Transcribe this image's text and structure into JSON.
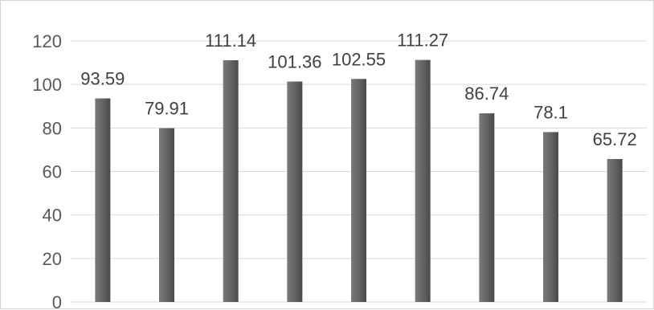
{
  "chart_data": {
    "type": "bar",
    "categories": [
      "",
      "",
      "",
      "",
      "",
      "",
      "",
      "",
      ""
    ],
    "values": [
      93.59,
      79.91,
      111.14,
      101.36,
      102.55,
      111.27,
      86.74,
      78.1,
      65.72
    ],
    "data_labels": [
      "93.59",
      "79.91",
      "111.14",
      "101.36",
      "102.55",
      "111.27",
      "86.74",
      "78.1",
      "65.72"
    ],
    "title": "",
    "xlabel": "",
    "ylabel": "",
    "ylim": [
      0,
      120
    ],
    "yticks": [
      0,
      20,
      40,
      60,
      80,
      100,
      120
    ],
    "grid": true,
    "legend": "none",
    "bar_color": "#646464",
    "bar_color_dark": "#4a4a4a",
    "bar_color_light": "#7a7a7a"
  }
}
